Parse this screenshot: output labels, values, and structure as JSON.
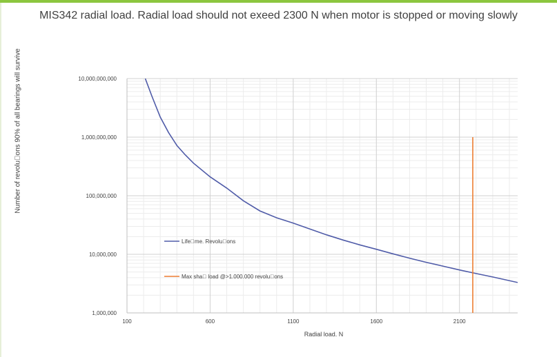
{
  "chart_data": {
    "type": "line",
    "title": "MIS342 radial load. Radial load should not exeed 2300 N when motor is stopped or moving slowly",
    "xlabel": "Radial load. N",
    "ylabel": "Number of revolu\u0000ons 90% of all bearings will survive",
    "y_scale": "log",
    "xlim": [
      100,
      2450
    ],
    "ylim": [
      1000000,
      10000000000
    ],
    "x_ticks": [
      100,
      600,
      1100,
      1600,
      2100
    ],
    "x_tick_labels": [
      "100",
      "600",
      "1100",
      "1600",
      "2100"
    ],
    "y_ticks": [
      1000000,
      10000000,
      100000000,
      1000000000,
      10000000000
    ],
    "y_tick_labels": [
      "1,000,000",
      "10,000,000",
      "100,000,000",
      "1,000,000,000",
      "10,000,000,000"
    ],
    "grid": true,
    "legend_position": "center-left",
    "series": [
      {
        "name": "Life\u0000me. Revolu\u0000ons",
        "color": "#4f5ba8",
        "x": [
          210,
          250,
          300,
          350,
          400,
          450,
          500,
          600,
          700,
          800,
          900,
          1000,
          1100,
          1200,
          1300,
          1400,
          1500,
          1600,
          1700,
          1800,
          1900,
          2000,
          2100,
          2200,
          2300,
          2450
        ],
        "y": [
          10000000000,
          5000000000,
          2200000000,
          1200000000,
          720000000,
          500000000,
          360000000,
          210000000,
          135000000,
          82000000,
          55000000,
          42000000,
          34000000,
          27000000,
          21500000,
          17500000,
          14500000,
          12200000,
          10200000,
          8600000,
          7300000,
          6300000,
          5400000,
          4700000,
          4100000,
          3300000
        ]
      },
      {
        "name": "Max sha\u0000 load @>1.000.000 revolu\u0000ons",
        "color": "#ed7d31",
        "x": [
          2180,
          2180
        ],
        "y": [
          1000000,
          1000000000
        ]
      }
    ]
  }
}
